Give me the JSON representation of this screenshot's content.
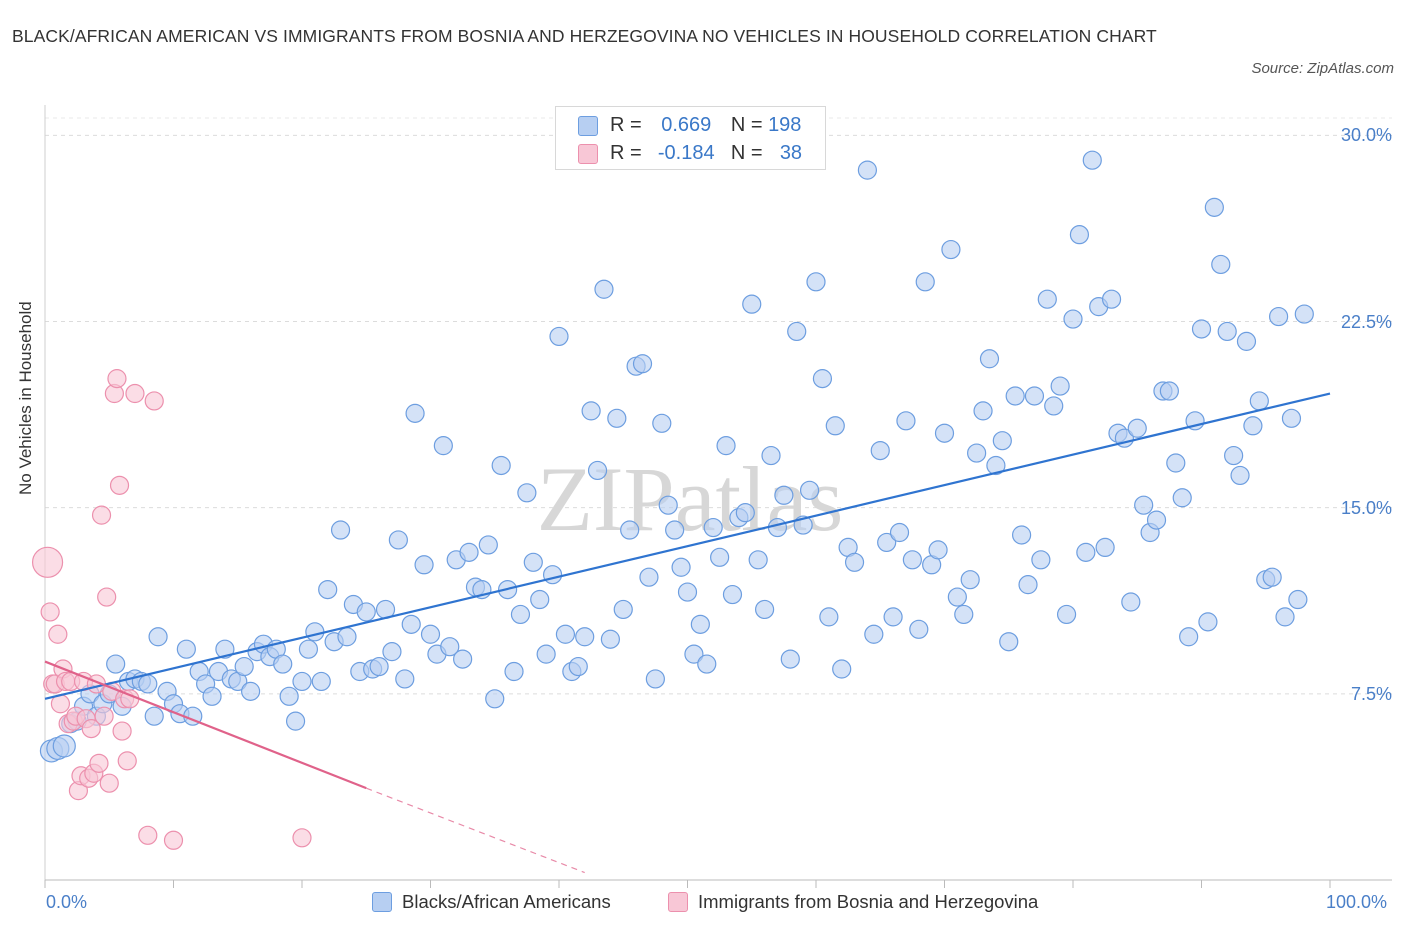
{
  "title": "BLACK/AFRICAN AMERICAN VS IMMIGRANTS FROM BOSNIA AND HERZEGOVINA NO VEHICLES IN HOUSEHOLD CORRELATION CHART",
  "source": "Source: ZipAtlas.com",
  "watermark": "ZIPatlas",
  "legend": {
    "r_label": "R =",
    "n_label": "N =",
    "rows": [
      {
        "r": "0.669",
        "n": "198",
        "color": "#a9c8f0"
      },
      {
        "r": "-0.184",
        "n": "38",
        "color": "#f5b8cb"
      }
    ]
  },
  "chart_data": {
    "type": "scatter",
    "title": "BLACK/AFRICAN AMERICAN VS IMMIGRANTS FROM BOSNIA AND HERZEGOVINA NO VEHICLES IN HOUSEHOLD CORRELATION CHART",
    "xlabel": "",
    "ylabel": "No Vehicles in Household",
    "xlim": [
      0,
      100
    ],
    "ylim": [
      0,
      30
    ],
    "x_tick_labels": [
      "0.0%",
      "100.0%"
    ],
    "y_tick_labels": [
      "7.5%",
      "15.0%",
      "22.5%",
      "30.0%"
    ],
    "y_ticks": [
      7.5,
      15.0,
      22.5,
      30.0
    ],
    "grid": "horizontal dashed",
    "legend_position": "bottom-center",
    "series": [
      {
        "name": "Blacks/African Americans",
        "color": "#6d9ee0",
        "fill": "#b7cff2",
        "trend": {
          "x0": 0,
          "y0": 7.3,
          "x1": 100,
          "y1": 19.6
        },
        "points": [
          [
            0.5,
            5.2
          ],
          [
            1,
            5.3
          ],
          [
            1.5,
            5.4
          ],
          [
            2,
            6.3
          ],
          [
            2.5,
            6.4
          ],
          [
            3,
            7.0
          ],
          [
            3.5,
            7.5
          ],
          [
            4,
            6.6
          ],
          [
            4.5,
            7.1
          ],
          [
            5,
            7.5
          ],
          [
            5.5,
            8.7
          ],
          [
            6,
            7.0
          ],
          [
            6.5,
            8.0
          ],
          [
            7,
            8.1
          ],
          [
            7.5,
            8.0
          ],
          [
            8,
            7.9
          ],
          [
            8.5,
            6.6
          ],
          [
            8.8,
            9.8
          ],
          [
            9.5,
            7.6
          ],
          [
            10,
            7.1
          ],
          [
            10.5,
            6.7
          ],
          [
            11,
            9.3
          ],
          [
            11.5,
            6.6
          ],
          [
            12,
            8.4
          ],
          [
            12.5,
            7.9
          ],
          [
            13,
            7.4
          ],
          [
            13.5,
            8.4
          ],
          [
            14,
            9.3
          ],
          [
            14.5,
            8.1
          ],
          [
            15,
            8.0
          ],
          [
            15.5,
            8.6
          ],
          [
            16,
            7.6
          ],
          [
            16.5,
            9.2
          ],
          [
            17,
            9.5
          ],
          [
            17.5,
            9.0
          ],
          [
            18,
            9.3
          ],
          [
            18.5,
            8.7
          ],
          [
            19,
            7.4
          ],
          [
            19.5,
            6.4
          ],
          [
            20,
            8.0
          ],
          [
            20.5,
            9.3
          ],
          [
            21,
            10.0
          ],
          [
            21.5,
            8.0
          ],
          [
            22,
            11.7
          ],
          [
            22.5,
            9.6
          ],
          [
            23,
            14.1
          ],
          [
            23.5,
            9.8
          ],
          [
            24,
            11.1
          ],
          [
            24.5,
            8.4
          ],
          [
            25,
            10.8
          ],
          [
            25.5,
            8.5
          ],
          [
            26,
            8.6
          ],
          [
            26.5,
            10.9
          ],
          [
            27,
            9.2
          ],
          [
            27.5,
            13.7
          ],
          [
            28,
            8.1
          ],
          [
            28.5,
            10.3
          ],
          [
            28.8,
            18.8
          ],
          [
            29.5,
            12.7
          ],
          [
            30,
            9.9
          ],
          [
            30.5,
            9.1
          ],
          [
            31,
            17.5
          ],
          [
            31.5,
            9.4
          ],
          [
            32,
            12.9
          ],
          [
            32.5,
            8.9
          ],
          [
            33,
            13.2
          ],
          [
            33.5,
            11.8
          ],
          [
            34,
            11.7
          ],
          [
            34.5,
            13.5
          ],
          [
            35,
            7.3
          ],
          [
            35.5,
            16.7
          ],
          [
            36,
            11.7
          ],
          [
            36.5,
            8.4
          ],
          [
            37,
            10.7
          ],
          [
            37.5,
            15.6
          ],
          [
            38,
            12.8
          ],
          [
            38.5,
            11.3
          ],
          [
            39,
            9.1
          ],
          [
            39.5,
            12.3
          ],
          [
            40,
            21.9
          ],
          [
            40.5,
            9.9
          ],
          [
            41,
            8.4
          ],
          [
            41.5,
            8.6
          ],
          [
            42,
            9.8
          ],
          [
            42.5,
            18.9
          ],
          [
            43,
            16.5
          ],
          [
            43.5,
            23.8
          ],
          [
            44,
            9.7
          ],
          [
            44.5,
            18.6
          ],
          [
            45,
            10.9
          ],
          [
            45.5,
            14.1
          ],
          [
            46,
            20.7
          ],
          [
            46.5,
            20.8
          ],
          [
            47,
            12.2
          ],
          [
            47.5,
            8.1
          ],
          [
            48,
            18.4
          ],
          [
            48.5,
            15.1
          ],
          [
            49,
            14.1
          ],
          [
            49.5,
            12.6
          ],
          [
            50,
            11.6
          ],
          [
            50.5,
            9.1
          ],
          [
            51,
            10.3
          ],
          [
            51.5,
            8.7
          ],
          [
            52,
            14.2
          ],
          [
            52.5,
            13.0
          ],
          [
            53,
            17.5
          ],
          [
            53.5,
            11.5
          ],
          [
            54,
            14.6
          ],
          [
            54.5,
            14.8
          ],
          [
            55,
            23.2
          ],
          [
            55.5,
            12.9
          ],
          [
            56,
            10.9
          ],
          [
            56.5,
            17.1
          ],
          [
            57,
            14.2
          ],
          [
            57.5,
            15.5
          ],
          [
            58,
            8.9
          ],
          [
            58.5,
            22.1
          ],
          [
            59,
            14.3
          ],
          [
            59.5,
            15.7
          ],
          [
            60,
            24.1
          ],
          [
            60.5,
            20.2
          ],
          [
            61,
            10.6
          ],
          [
            61.5,
            18.3
          ],
          [
            62,
            8.5
          ],
          [
            62.5,
            13.4
          ],
          [
            63,
            12.8
          ],
          [
            64,
            28.6
          ],
          [
            64.5,
            9.9
          ],
          [
            65,
            17.3
          ],
          [
            65.5,
            13.6
          ],
          [
            66,
            10.6
          ],
          [
            66.5,
            14.0
          ],
          [
            67,
            18.5
          ],
          [
            67.5,
            12.9
          ],
          [
            68,
            10.1
          ],
          [
            68.5,
            24.1
          ],
          [
            69,
            12.7
          ],
          [
            69.5,
            13.3
          ],
          [
            70,
            18.0
          ],
          [
            70.5,
            25.4
          ],
          [
            71,
            11.4
          ],
          [
            71.5,
            10.7
          ],
          [
            72,
            12.1
          ],
          [
            72.5,
            17.2
          ],
          [
            73,
            18.9
          ],
          [
            73.5,
            21.0
          ],
          [
            74,
            16.7
          ],
          [
            74.5,
            17.7
          ],
          [
            75,
            9.6
          ],
          [
            75.5,
            19.5
          ],
          [
            76,
            13.9
          ],
          [
            76.5,
            11.9
          ],
          [
            77,
            19.5
          ],
          [
            77.5,
            12.9
          ],
          [
            78,
            23.4
          ],
          [
            78.5,
            19.1
          ],
          [
            79,
            19.9
          ],
          [
            79.5,
            10.7
          ],
          [
            80,
            22.6
          ],
          [
            80.5,
            26.0
          ],
          [
            81,
            13.2
          ],
          [
            81.5,
            29.0
          ],
          [
            82,
            23.1
          ],
          [
            82.5,
            13.4
          ],
          [
            83,
            23.4
          ],
          [
            83.5,
            18.0
          ],
          [
            84,
            17.8
          ],
          [
            84.5,
            11.2
          ],
          [
            85,
            18.2
          ],
          [
            85.5,
            15.1
          ],
          [
            86,
            14.0
          ],
          [
            86.5,
            14.5
          ],
          [
            87,
            19.7
          ],
          [
            87.5,
            19.7
          ],
          [
            88,
            16.8
          ],
          [
            88.5,
            15.4
          ],
          [
            89,
            9.8
          ],
          [
            89.5,
            18.5
          ],
          [
            90,
            22.2
          ],
          [
            90.5,
            10.4
          ],
          [
            91,
            27.1
          ],
          [
            91.5,
            24.8
          ],
          [
            92,
            22.1
          ],
          [
            92.5,
            17.1
          ],
          [
            93,
            16.3
          ],
          [
            93.5,
            21.7
          ],
          [
            94,
            18.3
          ],
          [
            94.5,
            19.3
          ],
          [
            95,
            12.1
          ],
          [
            95.5,
            12.2
          ],
          [
            96,
            22.7
          ],
          [
            96.5,
            10.6
          ],
          [
            97,
            18.6
          ],
          [
            97.5,
            11.3
          ],
          [
            98,
            22.8
          ]
        ]
      },
      {
        "name": "Immigrants from Bosnia and Herzegovina",
        "color": "#ec90ad",
        "fill": "#f8c7d6",
        "trend": {
          "x0": 0,
          "y0": 8.8,
          "x1": 25,
          "y1": 3.7,
          "dash_x1": 42,
          "dash_y1": 0.3
        },
        "points": [
          [
            0.2,
            12.8
          ],
          [
            0.4,
            10.8
          ],
          [
            0.6,
            7.9
          ],
          [
            0.8,
            7.9
          ],
          [
            1,
            9.9
          ],
          [
            1.2,
            7.1
          ],
          [
            1.4,
            8.5
          ],
          [
            1.6,
            8.0
          ],
          [
            1.8,
            6.3
          ],
          [
            2,
            8.0
          ],
          [
            2.2,
            6.4
          ],
          [
            2.4,
            6.6
          ],
          [
            2.6,
            3.6
          ],
          [
            2.8,
            4.2
          ],
          [
            3,
            8.0
          ],
          [
            3.2,
            6.5
          ],
          [
            3.4,
            4.1
          ],
          [
            3.6,
            6.1
          ],
          [
            3.8,
            4.3
          ],
          [
            4,
            7.9
          ],
          [
            4.2,
            4.7
          ],
          [
            4.4,
            14.7
          ],
          [
            4.6,
            6.6
          ],
          [
            4.8,
            11.4
          ],
          [
            5,
            3.9
          ],
          [
            5.2,
            7.6
          ],
          [
            5.4,
            19.6
          ],
          [
            5.6,
            20.2
          ],
          [
            5.8,
            15.9
          ],
          [
            6,
            6.0
          ],
          [
            6.2,
            7.3
          ],
          [
            6.4,
            4.8
          ],
          [
            6.6,
            7.3
          ],
          [
            7,
            19.6
          ],
          [
            8,
            1.8
          ],
          [
            8.5,
            19.3
          ],
          [
            10,
            1.6
          ],
          [
            20,
            1.7
          ]
        ]
      }
    ]
  }
}
